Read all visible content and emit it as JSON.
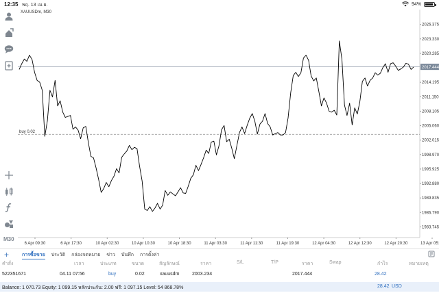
{
  "status": {
    "time": "12:35",
    "date": "พฤ. 13 เม.ย.",
    "battery": "94%",
    "battery_level": 0.94
  },
  "toolbar": {
    "items": [
      {
        "icon": "user-icon"
      },
      {
        "icon": "person-add-icon"
      },
      {
        "icon": "chat-bubble-icon"
      },
      {
        "icon": "new-document-icon"
      }
    ],
    "drawing_tools": [
      {
        "icon": "crosshair-icon"
      },
      {
        "icon": "candlestick-icon"
      },
      {
        "icon": "function-icon"
      },
      {
        "icon": "shapes-icon"
      }
    ],
    "timeframe": "M30"
  },
  "chart": {
    "symbol": "XAUUSDm, M30",
    "current_price_label": "2017.444",
    "buy_label": "buy 0.02",
    "buy_price": 2003.234,
    "current_price": 2017.444,
    "line_color": "#000000",
    "current_price_badge_color": "#7a8899"
  },
  "chart_data": {
    "type": "line",
    "title": "XAUUSDm, M30",
    "ylim": [
      1981.5,
      2029.5
    ],
    "y_ticks": [
      "2026.375",
      "2023.330",
      "2020.285",
      "2017.444",
      "2014.195",
      "2011.150",
      "2008.105",
      "2005.060",
      "2002.015",
      "1998.970",
      "1995.925",
      "1992.880",
      "1989.835",
      "1986.790",
      "1983.745"
    ],
    "x_ticks": [
      "6 Apr 09:30",
      "6 Apr 17:30",
      "10 Apr 02:30",
      "10 Apr 10:30",
      "10 Apr 18:30",
      "11 Apr 03:30",
      "11 Apr 11:30",
      "11 Apr 19:30",
      "12 Apr 04:30",
      "12 Apr 12:30",
      "12 Apr 20:30",
      "13 Apr 05:30"
    ],
    "series": [
      {
        "values": [
          2016.9,
          2018.1,
          2019.1,
          2018.6,
          2019.9,
          2019.0,
          2016.3,
          2014.6,
          2014.2,
          2012.5,
          2002.8,
          2006.1,
          2012.5,
          2011.1,
          2014.6,
          2009.2,
          2010.3,
          2007.9,
          2006.8,
          2007.0,
          2007.2,
          2004.3,
          2004.8,
          2004.1,
          2002.3,
          2004.6,
          2004.9,
          2001.5,
          1998.6,
          1998.3,
          1996.2,
          1993.8,
          1991.0,
          1991.8,
          1993.1,
          1992.2,
          1993.5,
          1994.4,
          1996.0,
          1995.1,
          1998.4,
          1999.1,
          1999.7,
          2000.9,
          2000.0,
          2000.5,
          2000.2,
          1996.5,
          1993.4,
          1987.5,
          1987.2,
          1988.0,
          1987.0,
          1987.7,
          1988.7,
          1987.5,
          1988.3,
          1991.4,
          1990.4,
          1991.1,
          1990.7,
          1990.3,
          1991.1,
          1992.0,
          1990.9,
          1990.8,
          1992.3,
          1994.0,
          1994.7,
          1996.7,
          1995.6,
          1996.9,
          1998.3,
          1999.9,
          1999.2,
          2001.6,
          2001.8,
          1998.9,
          2000.8,
          2004.2,
          2005.1,
          2001.7,
          2002.2,
          2000.3,
          1998.1,
          2000.9,
          2003.6,
          2004.8,
          2003.4,
          2005.1,
          2006.6,
          2007.6,
          2006.0,
          2003.3,
          2005.4,
          2006.0,
          2007.6,
          2005.5,
          2004.8,
          2003.1,
          2003.4,
          2003.6,
          2003.1,
          2003.1,
          2003.6,
          2006.7,
          2012.0,
          2015.6,
          2016.3,
          2015.4,
          2016.2,
          2019.3,
          2019.9,
          2018.8,
          2015.5,
          2014.5,
          2015.1,
          2012.2,
          2009.2,
          2010.9,
          2009.8,
          2008.1,
          2007.9,
          2008.3,
          2007.3,
          2022.9,
          2019.0,
          2009.4,
          2007.2,
          2009.8,
          2005.2,
          2008.8,
          2007.5,
          2010.1,
          2014.4,
          2015.1,
          2013.4,
          2014.6,
          2015.1,
          2016.2,
          2015.7,
          2016.1,
          2017.3,
          2018.1,
          2016.3,
          2018.1,
          2018.3,
          2017.6,
          2016.7,
          2017.0,
          2017.4,
          2018.2,
          2018.0,
          2016.9,
          2017.4
        ]
      }
    ]
  },
  "bottom_panel": {
    "tabs": [
      {
        "label": "การซื้อขาย",
        "active": true
      },
      {
        "label": "ประวัติ",
        "active": false
      },
      {
        "label": "กล่องจดหมาย",
        "active": false
      },
      {
        "label": "ข่าว",
        "active": false
      },
      {
        "label": "บันทึก",
        "active": false
      },
      {
        "label": "การตั้งค่า",
        "active": false
      }
    ],
    "columns": [
      "คำสั่ง",
      "เวลา",
      "ประเภท",
      "ขนาด",
      "สัญลักษณ์",
      "ราคา",
      "S/L",
      "T/P",
      "ราคา",
      "Swap",
      "กำไร",
      "หมายเหตุ"
    ],
    "rows": [
      {
        "order": "522351671",
        "time": "04.11 07:56",
        "type": "buy",
        "size": "0.02",
        "symbol": "xauusdm",
        "price": "2003.234",
        "sl": "",
        "tp": "",
        "current_price": "2017.444",
        "swap": "",
        "profit": "28.42",
        "comment": ""
      }
    ],
    "balance_text": "Balance: 1 070.73 Equity: 1 099.15 หลักประกัน: 2.00 ฟรี: 1 097.15 Level: 54 868.78%",
    "total_profit": "28.42",
    "currency": "USD"
  }
}
